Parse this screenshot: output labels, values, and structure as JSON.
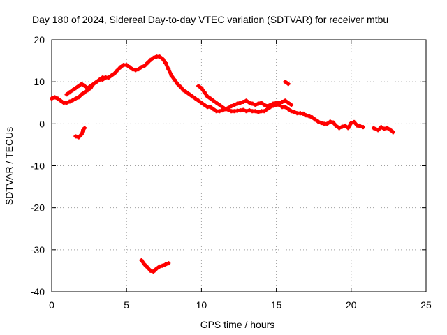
{
  "chart_data": {
    "type": "scatter",
    "title": "Day 180 of 2024, Sidereal Day-to-day VTEC variation (SDTVAR) for receiver mtbu",
    "xlabel": "GPS time / hours",
    "ylabel": "SDTVAR / TECUs",
    "xlim": [
      0,
      25
    ],
    "ylim": [
      -40,
      20
    ],
    "xticks": [
      0,
      5,
      10,
      15,
      20,
      25
    ],
    "yticks": [
      -40,
      -30,
      -20,
      -10,
      0,
      10,
      20
    ],
    "grid": true,
    "marker": "+",
    "series": [
      {
        "name": "SDTVAR",
        "color": "#ff0000",
        "x": [
          0.0,
          0.2,
          0.4,
          0.6,
          0.8,
          1.0,
          1.2,
          1.4,
          1.6,
          1.8,
          2.0,
          2.2,
          2.4,
          2.6,
          2.8,
          3.0,
          3.2,
          3.4,
          3.6,
          3.8,
          4.0,
          4.2,
          4.4,
          4.6,
          4.8,
          5.0,
          5.2,
          5.4,
          5.6,
          5.8,
          6.0,
          6.2,
          6.4,
          6.6,
          6.8,
          7.0,
          7.2,
          7.4,
          7.6,
          7.8,
          8.0,
          8.2,
          8.4,
          8.6,
          8.8,
          9.0,
          9.2,
          9.4,
          9.6,
          9.8,
          10.0,
          10.2,
          10.4,
          10.6,
          10.8,
          11.0,
          11.2,
          11.4,
          11.6,
          11.8,
          12.0,
          12.2,
          12.4,
          12.6,
          12.8,
          13.0,
          13.2,
          13.4,
          13.6,
          13.8,
          14.0,
          14.2,
          14.4,
          14.6,
          14.8,
          15.0,
          15.2,
          15.4,
          15.6,
          15.8,
          16.0,
          16.2,
          16.4,
          16.6,
          16.8,
          17.0,
          17.2,
          17.4,
          17.6,
          17.8,
          18.0,
          18.2,
          18.4,
          18.6,
          18.8,
          19.0,
          19.2,
          19.4,
          19.6,
          19.8,
          20.0,
          20.2,
          20.4,
          20.6,
          20.8,
          21.5,
          21.8,
          22.0,
          22.2,
          22.4,
          22.6,
          22.8,
          1.0,
          1.2,
          1.4,
          1.6,
          1.8,
          2.0,
          2.2,
          2.4,
          2.6,
          2.8,
          3.0,
          3.2,
          3.4,
          3.6,
          9.8,
          10.0,
          10.2,
          10.4,
          10.6,
          10.8,
          11.0,
          11.2,
          11.4,
          11.6,
          11.8,
          12.0,
          12.2,
          12.4,
          12.6,
          12.8,
          13.0,
          13.2,
          13.4,
          13.6,
          13.8,
          14.0,
          14.2,
          14.4,
          14.6,
          14.8,
          15.0,
          15.2,
          15.4,
          15.6,
          15.8,
          16.0,
          1.6,
          1.8,
          2.0,
          2.1,
          2.2,
          6.0,
          6.2,
          6.4,
          6.6,
          6.8,
          7.0,
          7.2,
          7.4,
          7.6,
          7.8,
          15.6,
          15.8
        ],
        "y": [
          6.0,
          6.3,
          6.0,
          5.5,
          5.0,
          5.0,
          5.3,
          5.6,
          6.0,
          6.3,
          7.0,
          7.5,
          8.0,
          8.5,
          9.5,
          10.0,
          10.5,
          10.5,
          11.0,
          11.0,
          11.5,
          12.0,
          12.8,
          13.5,
          14.0,
          14.0,
          13.5,
          13.0,
          12.8,
          13.0,
          13.5,
          13.8,
          14.5,
          15.2,
          15.7,
          16.0,
          16.0,
          15.5,
          14.5,
          13.0,
          11.5,
          10.5,
          9.5,
          8.8,
          8.0,
          7.5,
          7.0,
          6.5,
          6.0,
          5.5,
          5.0,
          4.5,
          4.0,
          4.0,
          3.5,
          3.0,
          3.0,
          3.2,
          3.5,
          3.3,
          3.0,
          3.0,
          3.1,
          3.2,
          3.3,
          3.0,
          3.2,
          3.0,
          3.0,
          2.8,
          3.0,
          3.0,
          3.5,
          4.0,
          4.3,
          4.5,
          4.5,
          4.0,
          4.0,
          3.5,
          3.0,
          2.8,
          2.5,
          2.5,
          2.4,
          2.0,
          1.8,
          1.5,
          1.0,
          0.5,
          0.2,
          0.0,
          0.0,
          0.5,
          0.3,
          -0.5,
          -1.0,
          -0.7,
          -0.5,
          -1.0,
          0.2,
          0.4,
          -0.4,
          -0.6,
          -0.8,
          -1.0,
          -1.5,
          -0.8,
          -1.2,
          -1.0,
          -1.4,
          -2.0,
          7.0,
          7.5,
          8.0,
          8.5,
          9.0,
          9.5,
          9.0,
          8.5,
          9.0,
          9.5,
          10.0,
          10.5,
          11.0,
          11.0,
          9.0,
          8.5,
          7.5,
          6.5,
          6.0,
          5.5,
          5.0,
          4.5,
          4.0,
          3.5,
          3.8,
          4.2,
          4.5,
          4.8,
          5.0,
          5.2,
          5.5,
          5.0,
          4.8,
          4.5,
          4.8,
          5.0,
          4.5,
          4.2,
          4.5,
          4.8,
          5.0,
          5.0,
          5.2,
          5.5,
          5.0,
          4.5,
          -3.0,
          -3.2,
          -2.5,
          -1.5,
          -1.0,
          -32.5,
          -33.5,
          -34.2,
          -35.0,
          -35.2,
          -34.5,
          -34.0,
          -33.8,
          -33.5,
          -33.2,
          10.0,
          9.5
        ]
      }
    ]
  }
}
